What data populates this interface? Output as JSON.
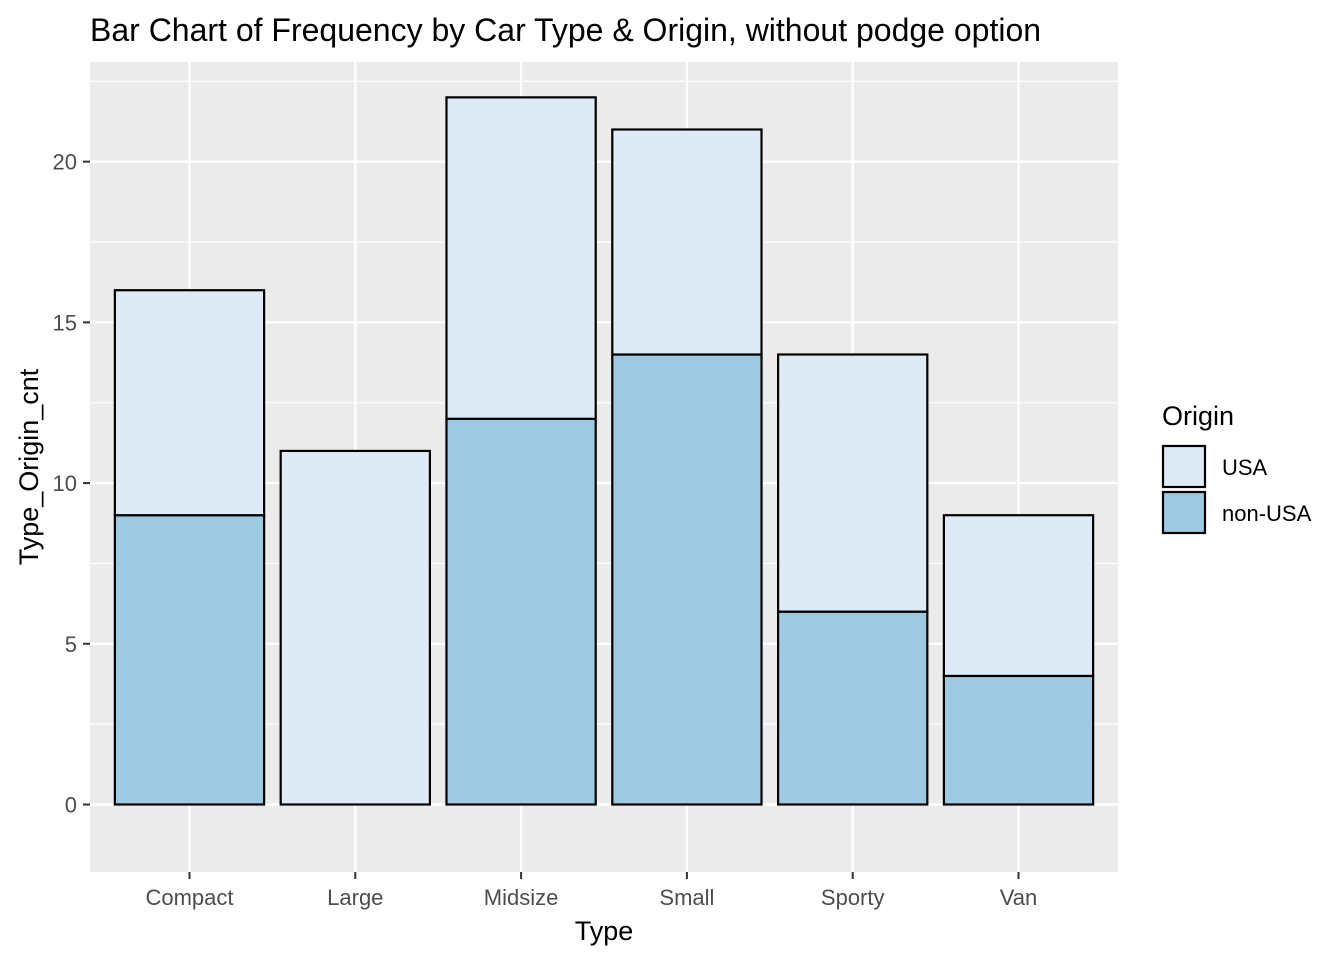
{
  "chart_data": {
    "type": "bar",
    "stacked": true,
    "title": "Bar Chart of Frequency by Car Type & Origin, without podge option",
    "xlabel": "Type",
    "ylabel": "Type_Origin_cnt",
    "categories": [
      "Compact",
      "Large",
      "Midsize",
      "Small",
      "Sporty",
      "Van"
    ],
    "series": [
      {
        "name": "non-USA",
        "values": [
          9,
          0,
          12,
          14,
          6,
          4
        ],
        "color": "#9ecae1"
      },
      {
        "name": "USA",
        "values": [
          7,
          11,
          10,
          7,
          8,
          5
        ],
        "color": "#deebf7"
      }
    ],
    "ylim": [
      -2.1,
      23.1
    ],
    "yticks": [
      0,
      5,
      10,
      15,
      20
    ],
    "grid": true,
    "panel_background": "#ebebeb",
    "bar_outline": "#000000",
    "legend": {
      "title": "Origin",
      "position": "right",
      "entries": [
        {
          "label": "USA",
          "color": "#deebf7"
        },
        {
          "label": "non-USA",
          "color": "#9ecae1"
        }
      ]
    }
  }
}
